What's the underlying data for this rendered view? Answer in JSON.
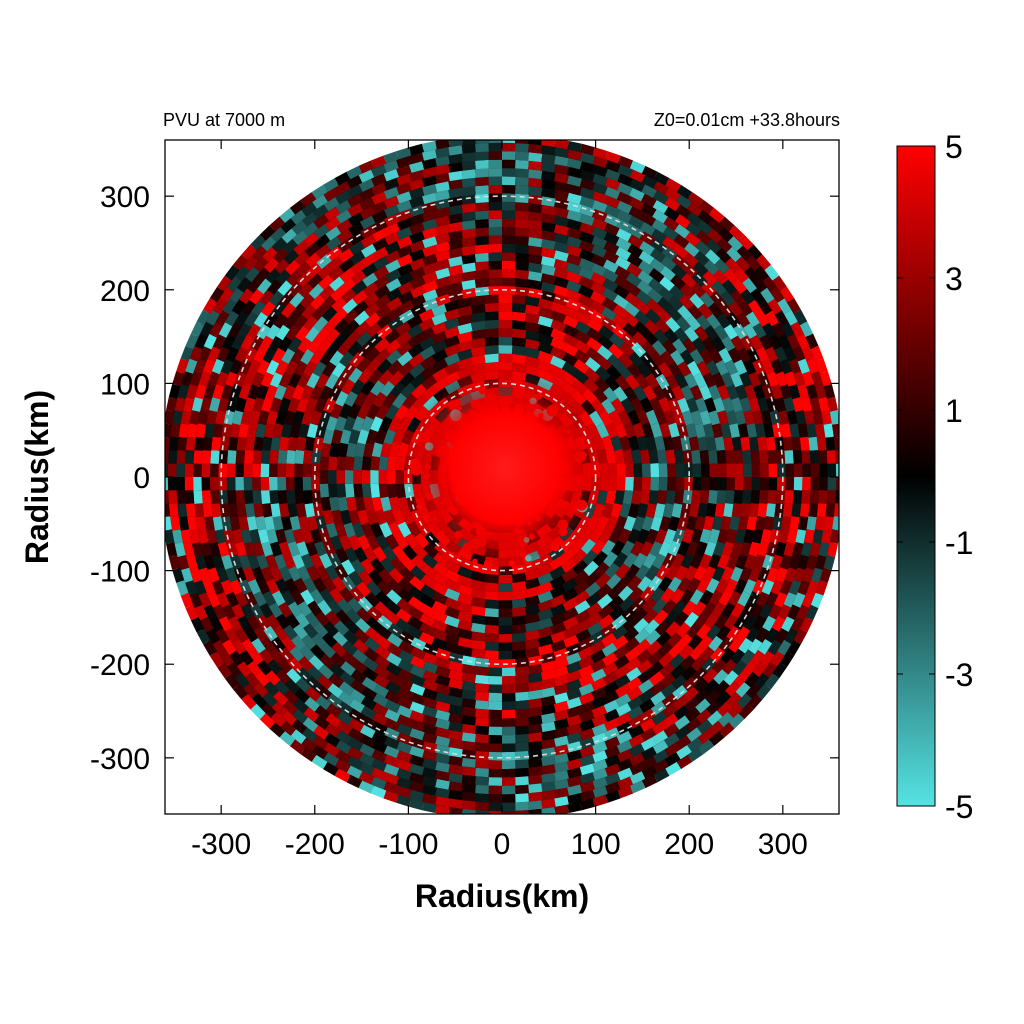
{
  "chart_data": {
    "type": "heatmap",
    "title_left": "PVU at  7000 m",
    "title_right": "Z0=0.01cm  +33.8hours",
    "xlabel": "Radius(km)",
    "ylabel": "Radius(km)",
    "xlim": [
      -360,
      360
    ],
    "ylim": [
      -360,
      360
    ],
    "xticks": [
      -300,
      -200,
      -100,
      0,
      100,
      200,
      300
    ],
    "yticks": [
      300,
      200,
      100,
      0,
      -100,
      -200,
      -300
    ],
    "xtick_labels": [
      "-300",
      "-200",
      "-100",
      "0",
      "100",
      "200",
      "300"
    ],
    "ytick_labels": [
      "300",
      "200",
      "100",
      "0",
      "-100",
      "-200",
      "-300"
    ],
    "data_domain_radius_km": 360,
    "reference_circles_km": [
      100,
      200,
      300
    ],
    "colorbar": {
      "range": [
        -5,
        5
      ],
      "tick_values": [
        5,
        3,
        1,
        -1,
        -3,
        -5
      ],
      "tick_labels": [
        "5",
        "3",
        "1",
        "-1",
        "-3",
        "-5"
      ],
      "colors": {
        "low": "#55e3e3",
        "mid": "#000000",
        "high": "#ff0000"
      }
    },
    "grid": false,
    "legend": "none",
    "description_field": "potential vorticity (PVU); intense positive core near center (radius < 100 km), mixed positive/negative banded structure outward"
  }
}
